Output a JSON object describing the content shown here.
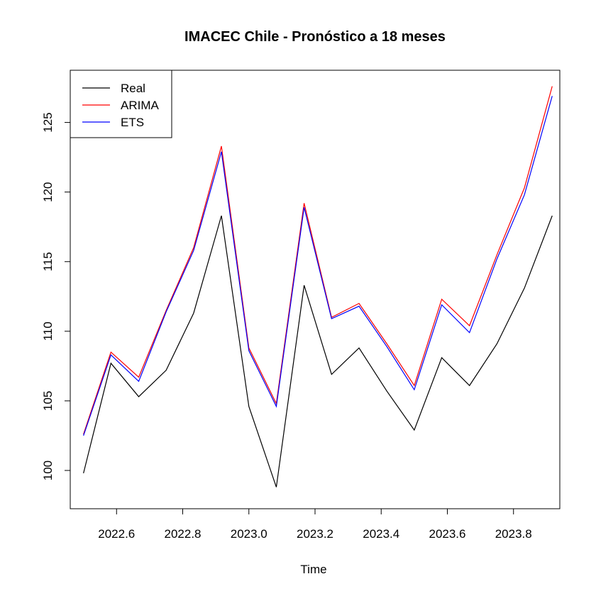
{
  "chart_data": {
    "type": "line",
    "title": "IMACEC Chile - Pronóstico a 18 meses",
    "xlabel": "Time",
    "ylabel": "",
    "xlim": [
      2022.46,
      2023.94
    ],
    "ylim": [
      97.25,
      128.75
    ],
    "xticks": [
      2022.6,
      2022.8,
      2023.0,
      2023.2,
      2023.4,
      2023.6,
      2023.8
    ],
    "xtick_labels": [
      "2022.6",
      "2022.8",
      "2023.0",
      "2023.2",
      "2023.4",
      "2023.6",
      "2023.8"
    ],
    "yticks": [
      100,
      105,
      110,
      115,
      120,
      125
    ],
    "ytick_labels": [
      "100",
      "105",
      "110",
      "115",
      "120",
      "125"
    ],
    "legend_position": "top-left",
    "x": [
      2022.5,
      2022.583,
      2022.667,
      2022.75,
      2022.833,
      2022.917,
      2023.0,
      2023.083,
      2023.167,
      2023.25,
      2023.333,
      2023.417,
      2023.5,
      2023.583,
      2023.667,
      2023.75,
      2023.833,
      2023.917
    ],
    "series": [
      {
        "name": "Real",
        "color": "#000000",
        "values": [
          99.8,
          107.7,
          105.3,
          107.2,
          111.3,
          118.3,
          104.6,
          98.8,
          113.3,
          106.9,
          108.8,
          105.7,
          102.9,
          108.1,
          106.1,
          109.1,
          113.1,
          118.3
        ]
      },
      {
        "name": "ARIMA",
        "color": "#ff0000",
        "values": [
          102.6,
          108.5,
          106.7,
          111.5,
          116.0,
          123.3,
          108.8,
          104.8,
          119.2,
          111.0,
          112.0,
          109.1,
          106.1,
          112.3,
          110.4,
          115.5,
          120.3,
          127.6
        ]
      },
      {
        "name": "ETS",
        "color": "#0000ff",
        "values": [
          102.5,
          108.3,
          106.4,
          111.4,
          115.8,
          122.9,
          108.6,
          104.6,
          118.9,
          110.9,
          111.8,
          108.9,
          105.8,
          111.9,
          109.9,
          115.2,
          119.8,
          126.9
        ]
      }
    ]
  }
}
